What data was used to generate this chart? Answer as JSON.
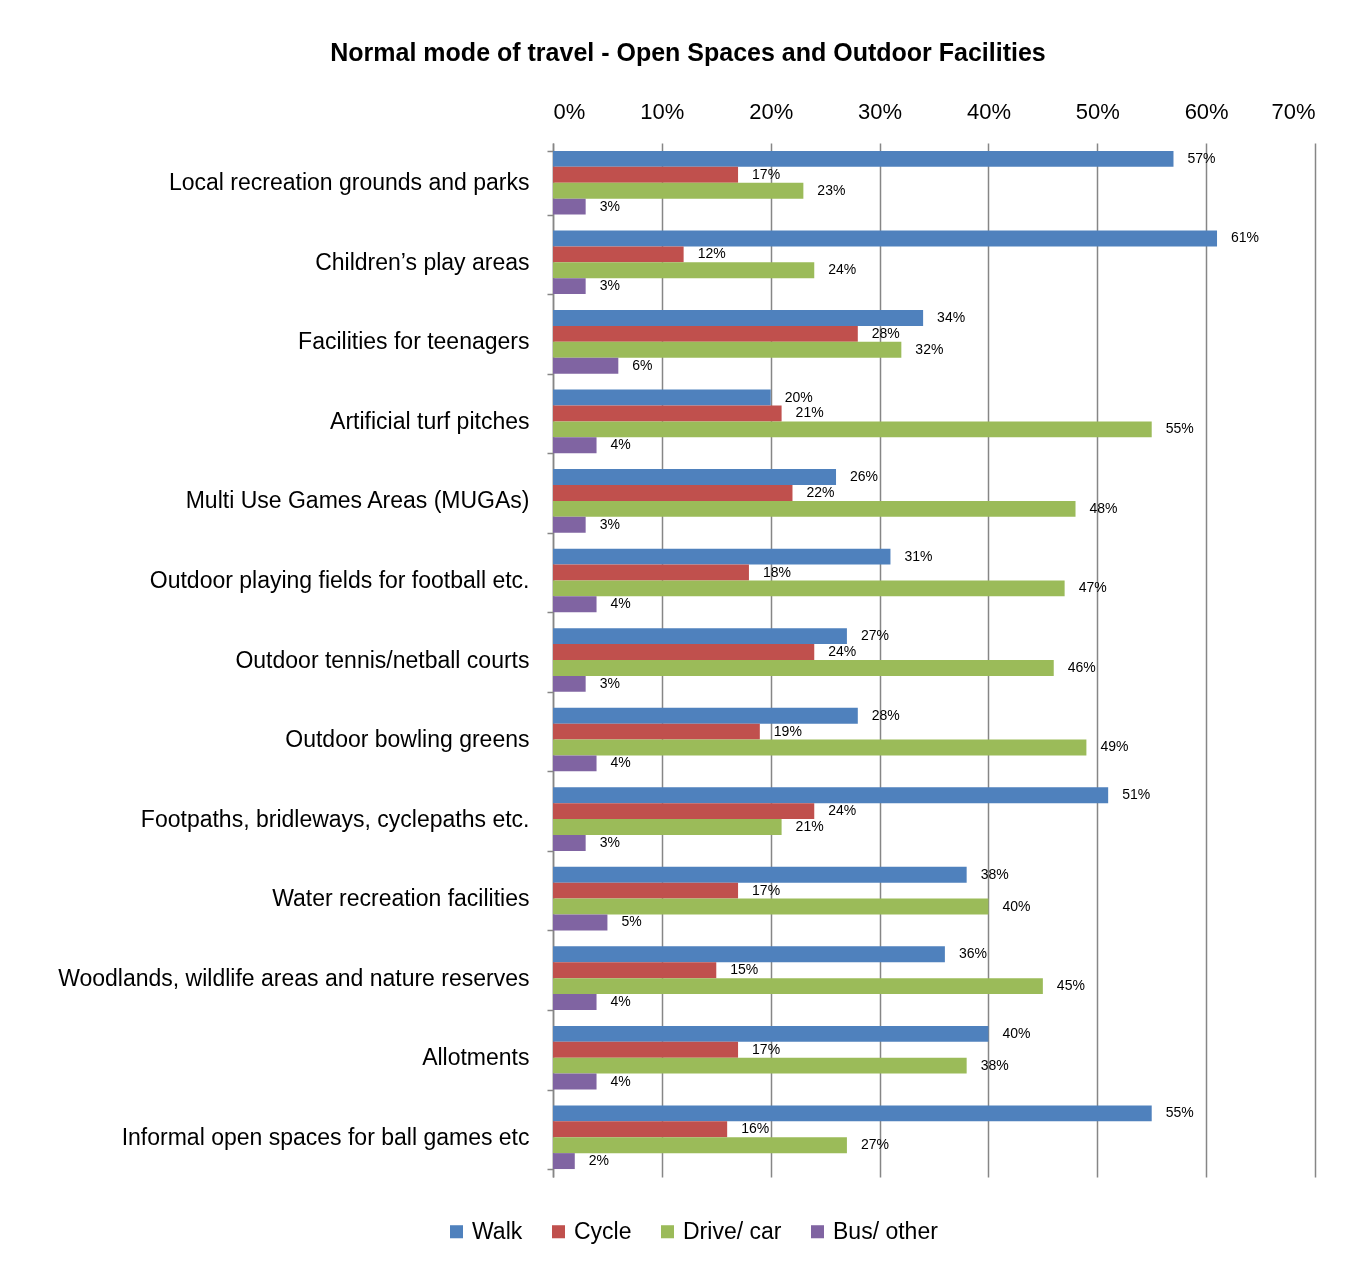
{
  "chart_data": {
    "type": "bar",
    "orientation": "horizontal",
    "title": "Normal mode of travel - Open Spaces and Outdoor Facilities",
    "categories": [
      "Local recreation grounds and parks",
      "Children’s play areas",
      "Facilities for teenagers",
      "Artificial turf pitches",
      "Multi Use Games Areas (MUGAs)",
      "Outdoor playing fields for football etc.",
      "Outdoor tennis/netball courts",
      "Outdoor bowling greens",
      "Footpaths, bridleways, cyclepaths etc.",
      "Water recreation facilities",
      "Woodlands, wildlife areas and nature reserves",
      "Allotments",
      "Informal open spaces for ball games etc"
    ],
    "series": [
      {
        "name": "Walk",
        "color": "#4f81bd",
        "values": [
          57,
          61,
          34,
          20,
          26,
          31,
          27,
          28,
          51,
          38,
          36,
          40,
          55
        ],
        "value_labels": [
          "57%",
          "61%",
          "34%",
          "20%",
          "26%",
          "31%",
          "27%",
          "28%",
          "51%",
          "38%",
          "36%",
          "40%",
          "55%"
        ]
      },
      {
        "name": "Cycle",
        "color": "#c0504d",
        "values": [
          17,
          12,
          28,
          21,
          22,
          18,
          24,
          19,
          24,
          17,
          15,
          17,
          16
        ],
        "value_labels": [
          "17%",
          "12%",
          "28%",
          "21%",
          "22%",
          "18%",
          "24%",
          "19%",
          "24%",
          "17%",
          "15%",
          "17%",
          "16%"
        ]
      },
      {
        "name": "Drive/ car",
        "color": "#9bbb59",
        "values": [
          23,
          24,
          32,
          55,
          48,
          47,
          46,
          49,
          21,
          40,
          45,
          38,
          27
        ],
        "value_labels": [
          "23%",
          "24%",
          "32%",
          "55%",
          "48%",
          "47%",
          "46%",
          "49%",
          "21%",
          "40%",
          "45%",
          "38%",
          "27%"
        ]
      },
      {
        "name": "Bus/ other",
        "color": "#8064a2",
        "values": [
          3,
          3,
          6,
          4,
          3,
          4,
          3,
          4,
          3,
          5,
          4,
          4,
          2
        ],
        "value_labels": [
          "3%",
          "3%",
          "6%",
          "4%",
          "3%",
          "4%",
          "3%",
          "4%",
          "3%",
          "5%",
          "4%",
          "4%",
          "2%"
        ]
      }
    ],
    "xlim": [
      0,
      70
    ],
    "xticks": [
      {
        "value": 0,
        "label": "0%"
      },
      {
        "value": 10,
        "label": "10%"
      },
      {
        "value": 20,
        "label": "20%"
      },
      {
        "value": 30,
        "label": "30%"
      },
      {
        "value": 40,
        "label": "40%"
      },
      {
        "value": 50,
        "label": "50%"
      },
      {
        "value": 60,
        "label": "60%"
      },
      {
        "value": 70,
        "label": "70%"
      }
    ],
    "grid": "x",
    "legend": "bottom"
  }
}
